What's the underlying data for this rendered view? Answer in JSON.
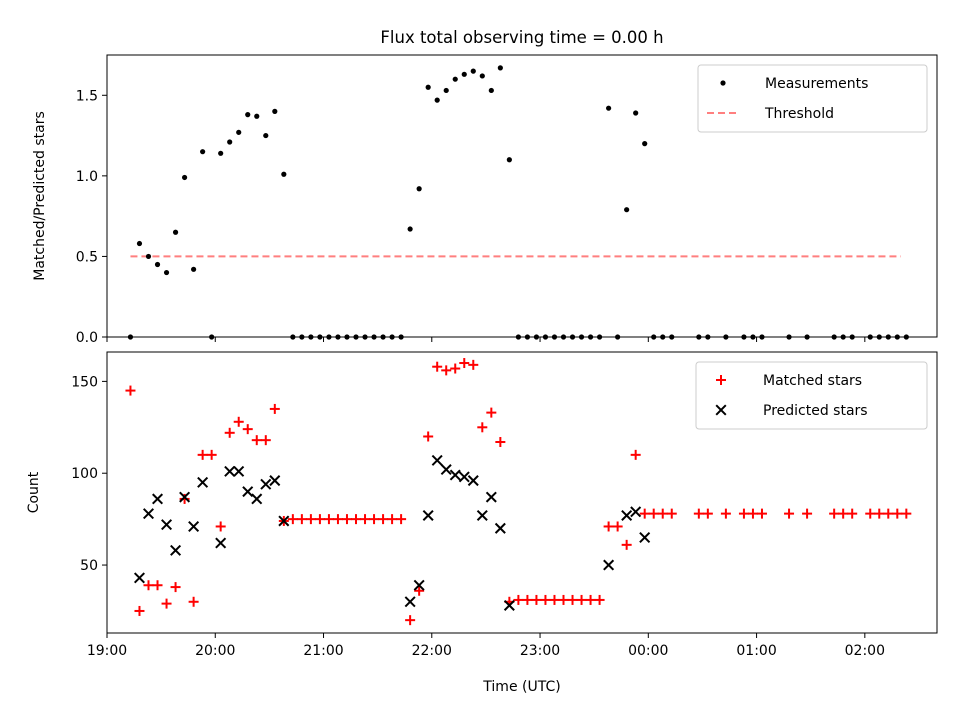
{
  "figure": {
    "title": "Flux total observing time = 0.00 h",
    "xlabel": "Time (UTC)"
  },
  "colors": {
    "measurement": "#000000",
    "threshold": "#ff7f7f",
    "matched": "#ff0000",
    "predicted": "#000000"
  },
  "chart_data": [
    {
      "type": "scatter",
      "ylabel": "Matched/Predicted stars",
      "xlim": [
        "19:00",
        "02:40"
      ],
      "ylim": [
        0,
        1.75
      ],
      "yticks": [
        "0.0",
        "0.5",
        "1.0",
        "1.5"
      ],
      "legend_position": "upper-right",
      "legend": [
        {
          "label": "Measurements",
          "marker": "dot"
        },
        {
          "label": "Threshold",
          "marker": "dashed-line"
        }
      ],
      "threshold": {
        "name": "Threshold",
        "value": 0.5,
        "x_range": [
          "19:13",
          "02:20"
        ]
      },
      "series": [
        {
          "name": "Measurements",
          "marker": "dot",
          "points": [
            [
              "19:13",
              0
            ],
            [
              "19:18",
              0.58
            ],
            [
              "19:23",
              0.5
            ],
            [
              "19:28",
              0.45
            ],
            [
              "19:33",
              0.4
            ],
            [
              "19:38",
              0.65
            ],
            [
              "19:43",
              0.99
            ],
            [
              "19:48",
              0.42
            ],
            [
              "19:53",
              1.15
            ],
            [
              "19:58",
              0
            ],
            [
              "20:03",
              1.14
            ],
            [
              "20:08",
              1.21
            ],
            [
              "20:13",
              1.27
            ],
            [
              "20:18",
              1.38
            ],
            [
              "20:23",
              1.37
            ],
            [
              "20:28",
              1.25
            ],
            [
              "20:33",
              1.4
            ],
            [
              "20:38",
              1.01
            ],
            [
              "20:43",
              0
            ],
            [
              "20:48",
              0
            ],
            [
              "20:53",
              0
            ],
            [
              "20:58",
              0
            ],
            [
              "21:03",
              0
            ],
            [
              "21:08",
              0
            ],
            [
              "21:13",
              0
            ],
            [
              "21:18",
              0
            ],
            [
              "21:23",
              0
            ],
            [
              "21:28",
              0
            ],
            [
              "21:33",
              0
            ],
            [
              "21:38",
              0
            ],
            [
              "21:43",
              0
            ],
            [
              "21:48",
              0.67
            ],
            [
              "21:53",
              0.92
            ],
            [
              "21:58",
              1.55
            ],
            [
              "22:03",
              1.47
            ],
            [
              "22:08",
              1.53
            ],
            [
              "22:13",
              1.6
            ],
            [
              "22:18",
              1.63
            ],
            [
              "22:23",
              1.65
            ],
            [
              "22:28",
              1.62
            ],
            [
              "22:33",
              1.53
            ],
            [
              "22:38",
              1.67
            ],
            [
              "22:43",
              1.1
            ],
            [
              "22:48",
              0
            ],
            [
              "22:53",
              0
            ],
            [
              "22:58",
              0
            ],
            [
              "23:03",
              0
            ],
            [
              "23:08",
              0
            ],
            [
              "23:13",
              0
            ],
            [
              "23:18",
              0
            ],
            [
              "23:23",
              0
            ],
            [
              "23:28",
              0
            ],
            [
              "23:33",
              0
            ],
            [
              "23:38",
              1.42
            ],
            [
              "23:43",
              0
            ],
            [
              "23:48",
              0.79
            ],
            [
              "23:53",
              1.39
            ],
            [
              "23:58",
              1.2
            ],
            [
              "00:03",
              0
            ],
            [
              "00:08",
              0
            ],
            [
              "00:13",
              0
            ],
            [
              "00:28",
              0
            ],
            [
              "00:33",
              0
            ],
            [
              "00:43",
              0
            ],
            [
              "00:53",
              0
            ],
            [
              "00:58",
              0
            ],
            [
              "01:03",
              0
            ],
            [
              "01:18",
              0
            ],
            [
              "01:28",
              0
            ],
            [
              "01:43",
              0
            ],
            [
              "01:48",
              0
            ],
            [
              "01:53",
              0
            ],
            [
              "02:03",
              0
            ],
            [
              "02:08",
              0
            ],
            [
              "02:13",
              0
            ],
            [
              "02:18",
              0
            ],
            [
              "02:23",
              0
            ]
          ]
        }
      ]
    },
    {
      "type": "scatter",
      "ylabel": "Count",
      "xlim": [
        "19:00",
        "02:40"
      ],
      "ylim": [
        13,
        166
      ],
      "yticks": [
        "50",
        "100",
        "150"
      ],
      "xticks": [
        "19:00",
        "20:00",
        "21:00",
        "22:00",
        "23:00",
        "00:00",
        "01:00",
        "02:00"
      ],
      "legend_position": "upper-right",
      "legend": [
        {
          "label": "Matched stars",
          "marker": "plus"
        },
        {
          "label": "Predicted stars",
          "marker": "x"
        }
      ],
      "series": [
        {
          "name": "Matched stars",
          "marker": "plus",
          "points": [
            [
              "19:13",
              145
            ],
            [
              "19:18",
              25
            ],
            [
              "19:23",
              39
            ],
            [
              "19:28",
              39
            ],
            [
              "19:33",
              29
            ],
            [
              "19:38",
              38
            ],
            [
              "19:43",
              86
            ],
            [
              "19:48",
              30
            ],
            [
              "19:53",
              110
            ],
            [
              "19:58",
              110
            ],
            [
              "20:03",
              71
            ],
            [
              "20:08",
              122
            ],
            [
              "20:13",
              128
            ],
            [
              "20:18",
              124
            ],
            [
              "20:23",
              118
            ],
            [
              "20:28",
              118
            ],
            [
              "20:33",
              135
            ],
            [
              "20:38",
              74
            ],
            [
              "20:43",
              75
            ],
            [
              "20:48",
              75
            ],
            [
              "20:53",
              75
            ],
            [
              "20:58",
              75
            ],
            [
              "21:03",
              75
            ],
            [
              "21:08",
              75
            ],
            [
              "21:13",
              75
            ],
            [
              "21:18",
              75
            ],
            [
              "21:23",
              75
            ],
            [
              "21:28",
              75
            ],
            [
              "21:33",
              75
            ],
            [
              "21:38",
              75
            ],
            [
              "21:43",
              75
            ],
            [
              "21:48",
              20
            ],
            [
              "21:53",
              36
            ],
            [
              "21:58",
              120
            ],
            [
              "22:03",
              158
            ],
            [
              "22:08",
              156
            ],
            [
              "22:13",
              157
            ],
            [
              "22:18",
              160
            ],
            [
              "22:23",
              159
            ],
            [
              "22:28",
              125
            ],
            [
              "22:33",
              133
            ],
            [
              "22:38",
              117
            ],
            [
              "22:43",
              30
            ],
            [
              "22:48",
              31
            ],
            [
              "22:53",
              31
            ],
            [
              "22:58",
              31
            ],
            [
              "23:03",
              31
            ],
            [
              "23:08",
              31
            ],
            [
              "23:13",
              31
            ],
            [
              "23:18",
              31
            ],
            [
              "23:23",
              31
            ],
            [
              "23:28",
              31
            ],
            [
              "23:33",
              31
            ],
            [
              "23:38",
              71
            ],
            [
              "23:43",
              71
            ],
            [
              "23:48",
              61
            ],
            [
              "23:53",
              110
            ],
            [
              "23:58",
              78
            ],
            [
              "00:03",
              78
            ],
            [
              "00:08",
              78
            ],
            [
              "00:13",
              78
            ],
            [
              "00:28",
              78
            ],
            [
              "00:33",
              78
            ],
            [
              "00:43",
              78
            ],
            [
              "00:53",
              78
            ],
            [
              "00:58",
              78
            ],
            [
              "01:03",
              78
            ],
            [
              "01:18",
              78
            ],
            [
              "01:28",
              78
            ],
            [
              "01:43",
              78
            ],
            [
              "01:48",
              78
            ],
            [
              "01:53",
              78
            ],
            [
              "02:03",
              78
            ],
            [
              "02:08",
              78
            ],
            [
              "02:13",
              78
            ],
            [
              "02:18",
              78
            ],
            [
              "02:23",
              78
            ]
          ]
        },
        {
          "name": "Predicted stars",
          "marker": "x",
          "points": [
            [
              "19:18",
              43
            ],
            [
              "19:23",
              78
            ],
            [
              "19:28",
              86
            ],
            [
              "19:33",
              72
            ],
            [
              "19:38",
              58
            ],
            [
              "19:43",
              87
            ],
            [
              "19:48",
              71
            ],
            [
              "19:53",
              95
            ],
            [
              "20:03",
              62
            ],
            [
              "20:08",
              101
            ],
            [
              "20:13",
              101
            ],
            [
              "20:18",
              90
            ],
            [
              "20:23",
              86
            ],
            [
              "20:28",
              94
            ],
            [
              "20:33",
              96
            ],
            [
              "20:38",
              74
            ],
            [
              "21:48",
              30
            ],
            [
              "21:53",
              39
            ],
            [
              "21:58",
              77
            ],
            [
              "22:03",
              107
            ],
            [
              "22:08",
              102
            ],
            [
              "22:13",
              99
            ],
            [
              "22:18",
              98
            ],
            [
              "22:23",
              96
            ],
            [
              "22:28",
              77
            ],
            [
              "22:33",
              87
            ],
            [
              "22:38",
              70
            ],
            [
              "22:43",
              28
            ],
            [
              "23:38",
              50
            ],
            [
              "23:48",
              77
            ],
            [
              "23:53",
              79
            ],
            [
              "23:58",
              65
            ]
          ]
        }
      ]
    }
  ]
}
